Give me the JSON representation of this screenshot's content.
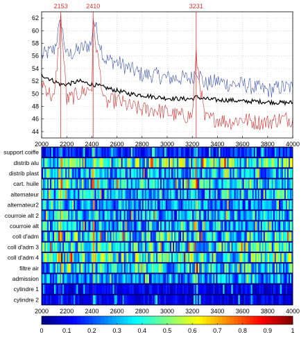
{
  "chart_data": [
    {
      "type": "line",
      "x_range": [
        2000,
        4000
      ],
      "ylim": [
        43,
        63
      ],
      "x_ticks": [
        "2000",
        "2200",
        "2400",
        "2600",
        "2800",
        "3000",
        "3200",
        "3400",
        "3600",
        "3800",
        "4000"
      ],
      "y_ticks": [
        "44",
        "46",
        "48",
        "50",
        "52",
        "54",
        "56",
        "58",
        "60",
        "62"
      ],
      "markers": [
        {
          "x": 2153,
          "label": "2153"
        },
        {
          "x": 2410,
          "label": "2410"
        },
        {
          "x": 3231,
          "label": "3231"
        }
      ],
      "series": [
        {
          "color": "#3a4fb0",
          "x": [
            2000,
            2100,
            2153,
            2200,
            2300,
            2400,
            2410,
            2500,
            2600,
            2700,
            2800,
            2900,
            3000,
            3100,
            3200,
            3231,
            3300,
            3400,
            3500,
            3600,
            3700,
            3800,
            3900,
            4000
          ],
          "values": [
            56,
            57,
            61.5,
            56,
            57,
            58,
            62,
            55.5,
            55,
            54,
            53,
            53,
            52.5,
            52.5,
            52.5,
            54,
            51.5,
            52,
            51.5,
            51.5,
            51,
            50.5,
            51,
            51
          ]
        },
        {
          "color": "#000000",
          "x": [
            2000,
            2100,
            2153,
            2200,
            2300,
            2400,
            2410,
            2500,
            2600,
            2700,
            2800,
            2900,
            3000,
            3100,
            3200,
            3231,
            3300,
            3400,
            3500,
            3600,
            3700,
            3800,
            3900,
            4000
          ],
          "values": [
            53,
            52,
            51.5,
            51.5,
            52,
            51.5,
            51.5,
            51,
            50.5,
            50,
            49.8,
            49.5,
            49.3,
            49.2,
            49.2,
            49.5,
            49.2,
            49,
            49,
            48.8,
            48.8,
            48.7,
            48.6,
            48.6
          ]
        },
        {
          "color": "#d42a2a",
          "x": [
            2000,
            2100,
            2153,
            2200,
            2300,
            2400,
            2410,
            2500,
            2600,
            2700,
            2800,
            2900,
            3000,
            3100,
            3200,
            3231,
            3300,
            3400,
            3500,
            3600,
            3700,
            3800,
            3900,
            4000
          ],
          "values": [
            52,
            49,
            62,
            49,
            50,
            51,
            61,
            48.5,
            49,
            48,
            47.5,
            47.5,
            47,
            46.5,
            46.5,
            56,
            46,
            46,
            45.5,
            46,
            45.5,
            45.5,
            46,
            46
          ]
        }
      ],
      "grid": true
    },
    {
      "type": "heatmap",
      "x_range": [
        2000,
        4000
      ],
      "x_ticks": [
        "2000",
        "2200",
        "2400",
        "2600",
        "2800",
        "3000",
        "3200",
        "3400",
        "3600",
        "3800",
        "4000"
      ],
      "rows": [
        "support coiffe",
        "distrib alu",
        "distrib plast",
        "cart. huile",
        "alternateur",
        "alternateur2",
        "courroie alt 2",
        "courroie alt",
        "coll d'adm",
        "coll d'adm 3",
        "coll d'adm 4",
        "filtre air",
        "admission",
        "cylindre 1",
        "cylindre 2"
      ],
      "row_mean_level": [
        0.15,
        0.4,
        0.3,
        0.32,
        0.3,
        0.25,
        0.3,
        0.3,
        0.35,
        0.35,
        0.4,
        0.35,
        0.25,
        0.1,
        0.1
      ],
      "colorbar": {
        "min": 0,
        "max": 1,
        "ticks": [
          "0",
          "0.1",
          "0.2",
          "0.3",
          "0.4",
          "0.5",
          "0.6",
          "0.7",
          "0.8",
          "0.9",
          "1"
        ],
        "colormap": "jet"
      },
      "markers": [
        2153,
        2410,
        3231
      ]
    }
  ]
}
